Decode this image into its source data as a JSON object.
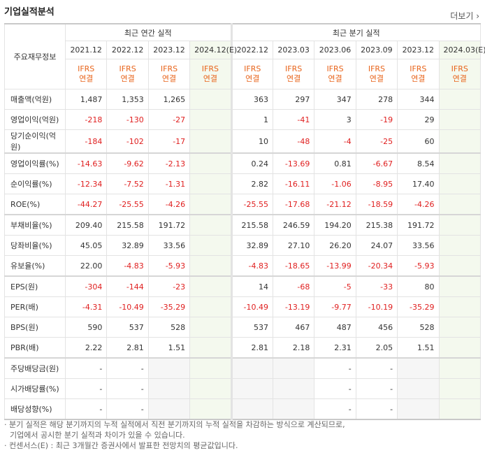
{
  "header": {
    "title": "기업실적분석",
    "more_link": "더보기"
  },
  "table": {
    "row_header": "주요재무정보",
    "groups": [
      {
        "label": "최근 연간 실적",
        "span": 4
      },
      {
        "label": "최근 분기 실적",
        "span": 6
      }
    ],
    "periods": [
      "2021.12",
      "2022.12",
      "2023.12",
      "2024.12(E)",
      "2022.12",
      "2023.03",
      "2023.06",
      "2023.09",
      "2023.12",
      "2024.03(E)"
    ],
    "estimate_columns": [
      3,
      9
    ],
    "standards": [
      {
        "standard": "IFRS",
        "basis": "연결"
      },
      {
        "standard": "IFRS",
        "basis": "연결"
      },
      {
        "standard": "IFRS",
        "basis": "연결"
      },
      {
        "standard": "IFRS",
        "basis": "연결"
      },
      {
        "standard": "IFRS",
        "basis": "연결"
      },
      {
        "standard": "IFRS",
        "basis": "연결"
      },
      {
        "standard": "IFRS",
        "basis": "연결"
      },
      {
        "standard": "IFRS",
        "basis": "연결"
      },
      {
        "standard": "IFRS",
        "basis": "연결"
      },
      {
        "standard": "IFRS",
        "basis": "연결"
      }
    ],
    "rows": [
      {
        "label": "매출액(억원)",
        "cells": [
          "1,487",
          "1,353",
          "1,265",
          null,
          "363",
          "297",
          "347",
          "278",
          "344",
          null
        ]
      },
      {
        "label": "영업이익(억원)",
        "cells": [
          "-218",
          "-130",
          "-27",
          null,
          "1",
          "-41",
          "3",
          "-19",
          "29",
          null
        ]
      },
      {
        "label": "당기순이익(억원)",
        "cells": [
          "-184",
          "-102",
          "-17",
          null,
          "10",
          "-48",
          "-4",
          "-25",
          "60",
          null
        ]
      },
      {
        "label": "영업이익률(%)",
        "cells": [
          "-14.63",
          "-9.62",
          "-2.13",
          null,
          "0.24",
          "-13.69",
          "0.81",
          "-6.67",
          "8.54",
          null
        ]
      },
      {
        "label": "순이익률(%)",
        "cells": [
          "-12.34",
          "-7.52",
          "-1.31",
          null,
          "2.82",
          "-16.11",
          "-1.06",
          "-8.95",
          "17.40",
          null
        ]
      },
      {
        "label": "ROE(%)",
        "cells": [
          "-44.27",
          "-25.55",
          "-4.26",
          null,
          "-25.55",
          "-17.68",
          "-21.12",
          "-18.59",
          "-4.26",
          null
        ]
      },
      {
        "label": "부채비율(%)",
        "cells": [
          "209.40",
          "215.58",
          "191.72",
          null,
          "215.58",
          "246.59",
          "194.20",
          "215.38",
          "191.72",
          null
        ]
      },
      {
        "label": "당좌비율(%)",
        "cells": [
          "45.05",
          "32.89",
          "33.56",
          null,
          "32.89",
          "27.10",
          "26.20",
          "24.07",
          "33.56",
          null
        ]
      },
      {
        "label": "유보율(%)",
        "cells": [
          "22.00",
          "-4.83",
          "-5.93",
          null,
          "-4.83",
          "-18.65",
          "-13.99",
          "-20.34",
          "-5.93",
          null
        ]
      },
      {
        "label": "EPS(원)",
        "cells": [
          "-304",
          "-144",
          "-23",
          null,
          "14",
          "-68",
          "-5",
          "-33",
          "80",
          null
        ]
      },
      {
        "label": "PER(배)",
        "cells": [
          "-4.31",
          "-10.49",
          "-35.29",
          null,
          "-10.49",
          "-13.19",
          "-9.77",
          "-10.19",
          "-35.29",
          null
        ]
      },
      {
        "label": "BPS(원)",
        "cells": [
          "590",
          "537",
          "528",
          null,
          "537",
          "467",
          "487",
          "456",
          "528",
          null
        ]
      },
      {
        "label": "PBR(배)",
        "cells": [
          "2.22",
          "2.81",
          "1.51",
          null,
          "2.81",
          "2.18",
          "2.31",
          "2.05",
          "1.51",
          null
        ]
      },
      {
        "label": "주당배당금(원)",
        "cells": [
          "-",
          "-",
          null,
          null,
          null,
          null,
          "-",
          "-",
          null,
          null
        ]
      },
      {
        "label": "시가배당률(%)",
        "cells": [
          "-",
          "-",
          null,
          null,
          null,
          null,
          "-",
          "-",
          null,
          null
        ]
      },
      {
        "label": "배당성향(%)",
        "cells": [
          "-",
          "-",
          null,
          null,
          null,
          null,
          "-",
          "-",
          null,
          null
        ]
      }
    ],
    "row_groups_end": [
      2,
      5,
      8,
      12
    ]
  },
  "notes": [
    {
      "lines": [
        "분기 실적은 해당 분기까지의 누적 실적에서 직전 분기까지의 누적 실적을 차감하는 방식으로 계산되므로,",
        "기업에서 공시한 분기 실적과 차이가 있을 수 있습니다."
      ]
    },
    {
      "lines": [
        "컨센서스(E) : 최근 3개월간 증권사에서 발표한 전망치의 평균값입니다."
      ]
    }
  ]
}
